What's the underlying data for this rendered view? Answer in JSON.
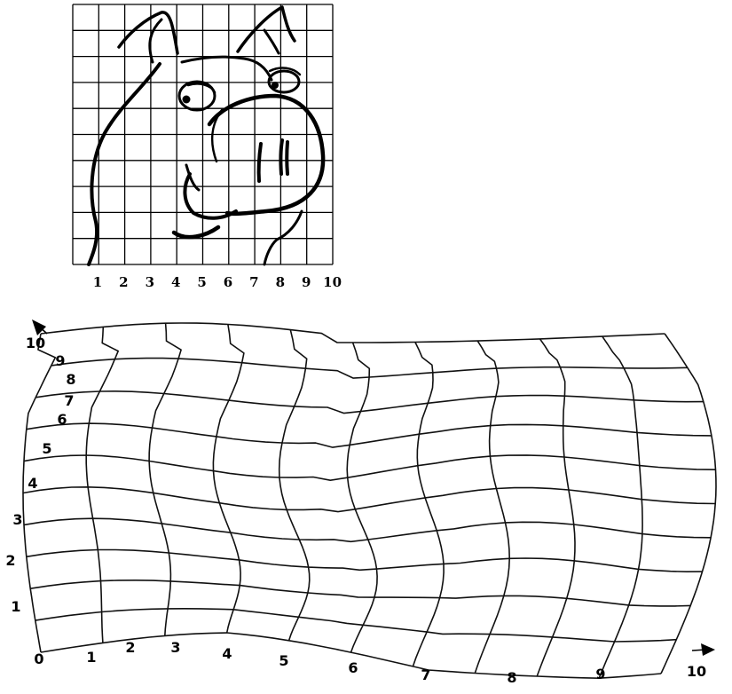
{
  "reference_grid": {
    "columns": 10,
    "rows": 10,
    "column_labels": [
      "1",
      "2",
      "3",
      "4",
      "5",
      "6",
      "7",
      "8",
      "9",
      "10"
    ]
  },
  "warped_grid": {
    "x_labels": [
      "0",
      "1",
      "2",
      "3",
      "4",
      "5",
      "6",
      "7",
      "8",
      "9",
      "10"
    ],
    "y_labels": [
      "1",
      "2",
      "3",
      "4",
      "5",
      "6",
      "7",
      "8",
      "9",
      "10"
    ]
  }
}
